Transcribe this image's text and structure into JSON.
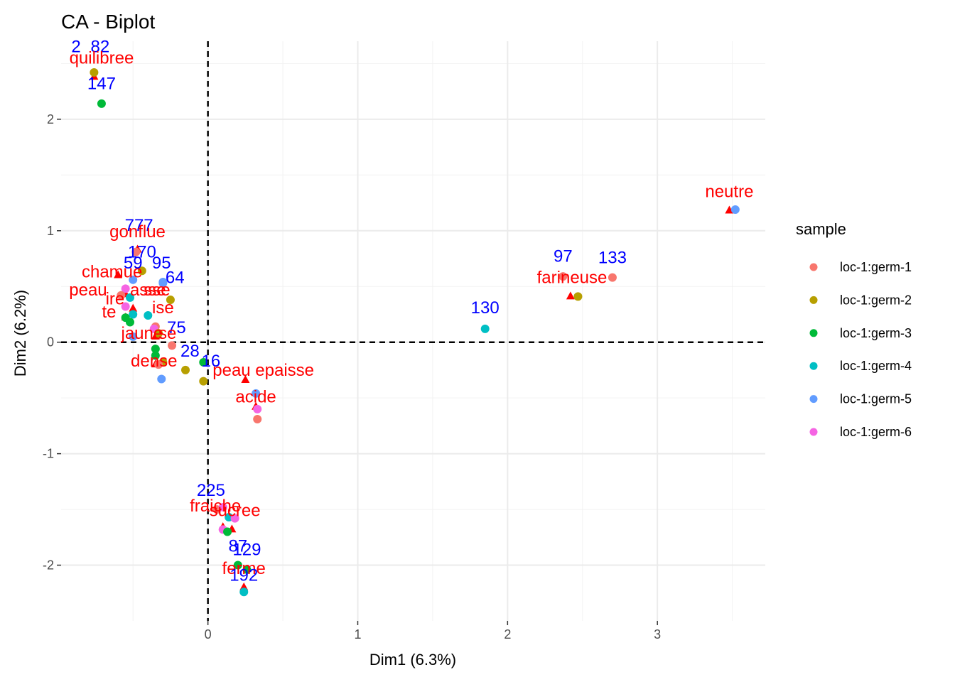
{
  "chart_data": {
    "type": "scatter",
    "title": "CA - Biplot",
    "xlabel": "Dim1 (6.3%)",
    "ylabel": "Dim2 (6.2%)",
    "xlim": [
      -0.98,
      3.72
    ],
    "ylim": [
      -2.5,
      2.7
    ],
    "x_ticks": [
      0,
      1,
      2,
      3
    ],
    "y_ticks": [
      -2,
      -1,
      0,
      1,
      2
    ],
    "x_tick_labels": [
      "0",
      "1",
      "2",
      "3"
    ],
    "y_tick_labels": [
      "-2",
      "-1",
      "0",
      "1",
      "2"
    ],
    "grid": true,
    "reference_lines": {
      "x": 0,
      "y": 0,
      "style": "dashed"
    },
    "legend": {
      "title": "sample",
      "placement": "right",
      "entries": [
        {
          "name": "loc-1:germ-1",
          "color": "#F8766D"
        },
        {
          "name": "loc-1:germ-2",
          "color": "#B79F00"
        },
        {
          "name": "loc-1:germ-3",
          "color": "#00BA38"
        },
        {
          "name": "loc-1:germ-4",
          "color": "#00BFC4"
        },
        {
          "name": "loc-1:germ-5",
          "color": "#619CFF"
        },
        {
          "name": "loc-1:germ-6",
          "color": "#F564E3"
        }
      ]
    },
    "row_points": [
      {
        "label": "282",
        "x": -0.76,
        "y": 2.42,
        "group": 1
      },
      {
        "label": "147",
        "x": -0.71,
        "y": 2.14,
        "group": 2
      },
      {
        "label": "170",
        "x": -0.48,
        "y": 0.81,
        "group": 0
      },
      {
        "label": "",
        "x": -0.44,
        "y": 0.64,
        "group": 1
      },
      {
        "label": "95",
        "x": -0.3,
        "y": 0.54,
        "group": 4
      },
      {
        "label": "64",
        "x": -0.3,
        "y": 0.53,
        "group": 4
      },
      {
        "label": "",
        "x": -0.55,
        "y": 0.48,
        "group": 5
      },
      {
        "label": "",
        "x": -0.5,
        "y": 0.56,
        "group": 4
      },
      {
        "label": "",
        "x": -0.58,
        "y": 0.42,
        "group": 0
      },
      {
        "label": "",
        "x": -0.52,
        "y": 0.4,
        "group": 3
      },
      {
        "label": "",
        "x": -0.25,
        "y": 0.38,
        "group": 1
      },
      {
        "label": "",
        "x": -0.55,
        "y": 0.32,
        "group": 5
      },
      {
        "label": "",
        "x": -0.5,
        "y": 0.25,
        "group": 3
      },
      {
        "label": "",
        "x": -0.4,
        "y": 0.24,
        "group": 3
      },
      {
        "label": "",
        "x": -0.55,
        "y": 0.22,
        "group": 2
      },
      {
        "label": "",
        "x": -0.52,
        "y": 0.18,
        "group": 2
      },
      {
        "label": "",
        "x": -0.35,
        "y": 0.14,
        "group": 0
      },
      {
        "label": "",
        "x": -0.36,
        "y": 0.12,
        "group": 5
      },
      {
        "label": "",
        "x": -0.33,
        "y": 0.08,
        "group": 1
      },
      {
        "label": "",
        "x": -0.5,
        "y": 0.05,
        "group": 4
      },
      {
        "label": "75",
        "x": -0.24,
        "y": -0.03,
        "group": 0
      },
      {
        "label": "",
        "x": -0.35,
        "y": -0.06,
        "group": 2
      },
      {
        "label": "",
        "x": -0.35,
        "y": -0.12,
        "group": 2
      },
      {
        "label": "",
        "x": -0.3,
        "y": -0.18,
        "group": 1
      },
      {
        "label": "",
        "x": -0.33,
        "y": -0.2,
        "group": 0
      },
      {
        "label": "28",
        "x": -0.15,
        "y": -0.25,
        "group": 1
      },
      {
        "label": "",
        "x": -0.03,
        "y": -0.18,
        "group": 2
      },
      {
        "label": "16",
        "x": -0.03,
        "y": -0.35,
        "group": 1
      },
      {
        "label": "",
        "x": -0.31,
        "y": -0.33,
        "group": 4
      },
      {
        "label": "",
        "x": 0.32,
        "y": -0.46,
        "group": 4
      },
      {
        "label": "",
        "x": 0.33,
        "y": -0.6,
        "group": 5
      },
      {
        "label": "",
        "x": 0.33,
        "y": -0.69,
        "group": 0
      },
      {
        "label": "97",
        "x": 2.37,
        "y": 0.59,
        "group": 0
      },
      {
        "label": "133",
        "x": 2.7,
        "y": 0.58,
        "group": 0
      },
      {
        "label": "",
        "x": 2.47,
        "y": 0.41,
        "group": 1
      },
      {
        "label": "130",
        "x": 1.85,
        "y": 0.12,
        "group": 3
      },
      {
        "label": "",
        "x": 3.52,
        "y": 1.19,
        "group": 4
      },
      {
        "label": "225",
        "x": 0.06,
        "y": -1.5,
        "group": 0
      },
      {
        "label": "",
        "x": 0.1,
        "y": -1.48,
        "group": 5
      },
      {
        "label": "",
        "x": 0.14,
        "y": -1.57,
        "group": 3
      },
      {
        "label": "",
        "x": 0.18,
        "y": -1.58,
        "group": 5
      },
      {
        "label": "",
        "x": 0.1,
        "y": -1.68,
        "group": 5
      },
      {
        "label": "",
        "x": 0.13,
        "y": -1.7,
        "group": 2
      },
      {
        "label": "87",
        "x": 0.2,
        "y": -2.0,
        "group": 2
      },
      {
        "label": "129",
        "x": 0.26,
        "y": -2.04,
        "group": 2
      },
      {
        "label": "192",
        "x": 0.24,
        "y": -2.24,
        "group": 3
      }
    ],
    "column_points": [
      {
        "label": "quilibree",
        "x": -0.76,
        "y": 2.38
      },
      {
        "label": "gonflue",
        "x": -0.47,
        "y": 0.83
      },
      {
        "label": "charnue",
        "x": -0.6,
        "y": 0.6
      },
      {
        "label": "peau epaisse",
        "x": -0.55,
        "y": 0.43
      },
      {
        "label": "fragile",
        "x": -0.5,
        "y": 0.3
      },
      {
        "label": "terreux",
        "x": -0.55,
        "y": 0.22
      },
      {
        "label": "jaune",
        "x": -0.35,
        "y": 0.05
      },
      {
        "label": "dense",
        "x": -0.35,
        "y": -0.2
      },
      {
        "label": "peau epaisse",
        "x": 0.25,
        "y": -0.34
      },
      {
        "label": "acide",
        "x": 0.32,
        "y": -0.58
      },
      {
        "label": "farineuse",
        "x": 2.42,
        "y": 0.41
      },
      {
        "label": "neutre",
        "x": 3.48,
        "y": 1.18
      },
      {
        "label": "fraiche",
        "x": 0.1,
        "y": -1.66
      },
      {
        "label": "sucree",
        "x": 0.16,
        "y": -1.68
      },
      {
        "label": "ferme",
        "x": 0.24,
        "y": -2.2
      }
    ],
    "overlap_labels": [
      {
        "text": "2",
        "color": "#0000ff",
        "x": -0.88,
        "y": 2.6
      },
      {
        "text": "82",
        "color": "#0000ff",
        "x": -0.72,
        "y": 2.6
      },
      {
        "text": "quilibree",
        "color": "#ff0000",
        "x": -0.71,
        "y": 2.5
      },
      {
        "text": "147",
        "color": "#0000ff",
        "x": -0.71,
        "y": 2.27
      },
      {
        "text": "777",
        "color": "#0000ff",
        "x": -0.46,
        "y": 1.0
      },
      {
        "text": "gonflue",
        "color": "#ff0000",
        "x": -0.47,
        "y": 0.94
      },
      {
        "text": "170",
        "color": "#0000ff",
        "x": -0.44,
        "y": 0.76
      },
      {
        "text": "chamue",
        "color": "#ff0000",
        "x": -0.64,
        "y": 0.58
      },
      {
        "text": "59",
        "color": "#0000ff",
        "x": -0.5,
        "y": 0.66
      },
      {
        "text": "95",
        "color": "#0000ff",
        "x": -0.31,
        "y": 0.66
      },
      {
        "text": "64",
        "color": "#0000ff",
        "x": -0.22,
        "y": 0.53
      },
      {
        "text": "peau",
        "color": "#ff0000",
        "x": -0.8,
        "y": 0.42
      },
      {
        "text": "asse",
        "color": "#ff0000",
        "x": -0.4,
        "y": 0.42
      },
      {
        "text": "sse",
        "color": "#ff0000",
        "x": -0.34,
        "y": 0.42
      },
      {
        "text": "ire",
        "color": "#ff0000",
        "x": -0.62,
        "y": 0.34
      },
      {
        "text": "te",
        "color": "#ff0000",
        "x": -0.66,
        "y": 0.22
      },
      {
        "text": "ise",
        "color": "#ff0000",
        "x": -0.3,
        "y": 0.26
      },
      {
        "text": "75",
        "color": "#0000ff",
        "x": -0.21,
        "y": 0.08
      },
      {
        "text": "jaune",
        "color": "#ff0000",
        "x": -0.44,
        "y": 0.03
      },
      {
        "text": "se",
        "color": "#ff0000",
        "x": -0.27,
        "y": 0.03
      },
      {
        "text": "28",
        "color": "#0000ff",
        "x": -0.12,
        "y": -0.13
      },
      {
        "text": "dense",
        "color": "#ff0000",
        "x": -0.36,
        "y": -0.22
      },
      {
        "text": "16",
        "color": "#0000ff",
        "x": 0.02,
        "y": -0.22
      },
      {
        "text": "peau epaisse",
        "color": "#ff0000",
        "x": 0.37,
        "y": -0.3
      },
      {
        "text": "acide",
        "color": "#ff0000",
        "x": 0.32,
        "y": -0.54
      },
      {
        "text": "97",
        "color": "#0000ff",
        "x": 2.37,
        "y": 0.72
      },
      {
        "text": "133",
        "color": "#0000ff",
        "x": 2.7,
        "y": 0.71
      },
      {
        "text": "farineuse",
        "color": "#ff0000",
        "x": 2.43,
        "y": 0.53
      },
      {
        "text": "130",
        "color": "#0000ff",
        "x": 1.85,
        "y": 0.26
      },
      {
        "text": "neutre",
        "color": "#ff0000",
        "x": 3.48,
        "y": 1.3
      },
      {
        "text": "225",
        "color": "#0000ff",
        "x": 0.02,
        "y": -1.38
      },
      {
        "text": "fraiche",
        "color": "#ff0000",
        "x": 0.05,
        "y": -1.52
      },
      {
        "text": "sucree",
        "color": "#ff0000",
        "x": 0.18,
        "y": -1.56
      },
      {
        "text": "87",
        "color": "#0000ff",
        "x": 0.2,
        "y": -1.88
      },
      {
        "text": "129",
        "color": "#0000ff",
        "x": 0.26,
        "y": -1.91
      },
      {
        "text": "ferme",
        "color": "#ff0000",
        "x": 0.24,
        "y": -2.08
      },
      {
        "text": "192",
        "color": "#0000ff",
        "x": 0.24,
        "y": -2.14
      }
    ]
  }
}
